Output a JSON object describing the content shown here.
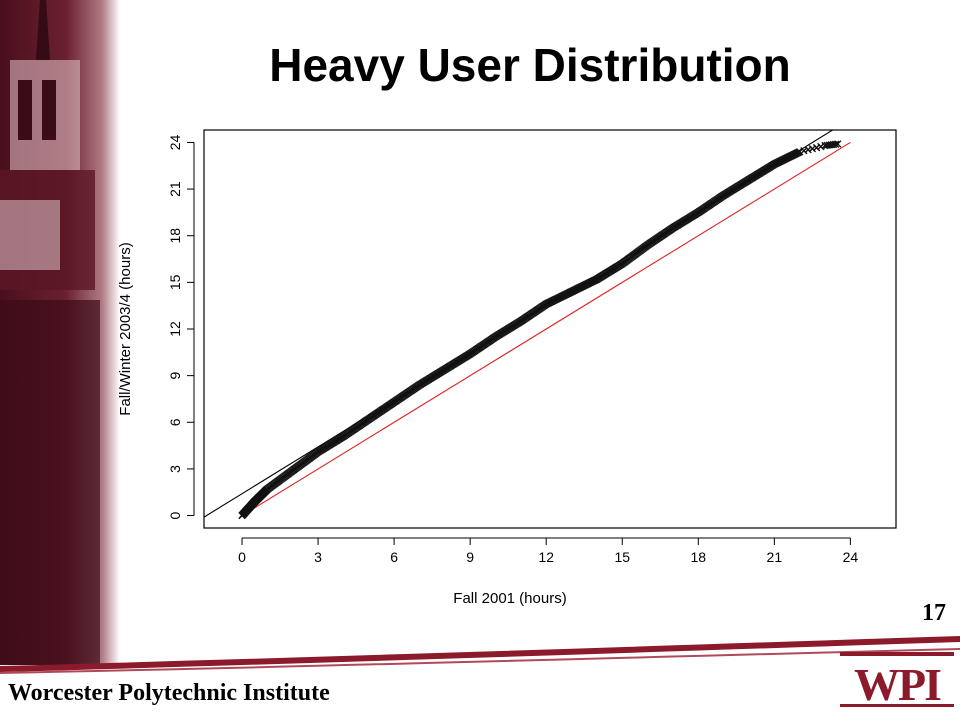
{
  "slide": {
    "title": "Heavy User Distribution",
    "page_number": "17",
    "footer": "Worcester Polytechnic Institute",
    "logo_text": "WPI",
    "colors": {
      "maroon": "#8b1a2b",
      "accent": "#a0263a"
    }
  },
  "chart_data": {
    "type": "scatter",
    "title": "",
    "xlabel": "Fall 2001 (hours)",
    "ylabel": "Fall/Winter 2003/4 (hours)",
    "xlim": [
      -1.5,
      25.8
    ],
    "ylim": [
      -0.8,
      24.8
    ],
    "xticks": [
      0,
      3,
      6,
      9,
      12,
      15,
      18,
      21,
      24
    ],
    "yticks": [
      0,
      3,
      6,
      9,
      12,
      15,
      18,
      21,
      24
    ],
    "grid": false,
    "marker": "x",
    "quantile_points": [
      [
        0.0,
        0.0
      ],
      [
        0.5,
        0.9
      ],
      [
        1.0,
        1.7
      ],
      [
        2.0,
        2.9
      ],
      [
        3.0,
        4.1
      ],
      [
        4.0,
        5.1
      ],
      [
        5.0,
        6.2
      ],
      [
        6.0,
        7.3
      ],
      [
        7.0,
        8.4
      ],
      [
        8.0,
        9.4
      ],
      [
        9.0,
        10.4
      ],
      [
        10.0,
        11.5
      ],
      [
        11.0,
        12.5
      ],
      [
        12.0,
        13.6
      ],
      [
        13.0,
        14.4
      ],
      [
        14.0,
        15.2
      ],
      [
        15.0,
        16.2
      ],
      [
        16.0,
        17.4
      ],
      [
        17.0,
        18.5
      ],
      [
        18.0,
        19.5
      ],
      [
        19.0,
        20.6
      ],
      [
        20.0,
        21.6
      ],
      [
        21.0,
        22.6
      ],
      [
        22.0,
        23.4
      ],
      [
        23.0,
        23.8
      ],
      [
        23.5,
        23.9
      ]
    ],
    "reference_lines": [
      {
        "name": "y = x",
        "color": "#e02020",
        "from": [
          0,
          0
        ],
        "to": [
          24,
          24
        ]
      },
      {
        "name": "fit",
        "color": "#000000",
        "from": [
          -1.5,
          -0.1
        ],
        "to": [
          23.3,
          24.8
        ]
      }
    ]
  }
}
